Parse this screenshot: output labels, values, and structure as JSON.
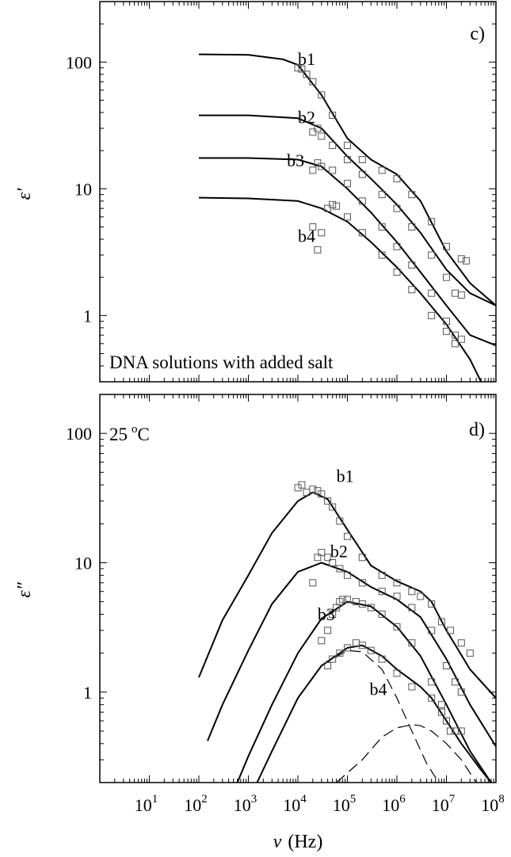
{
  "chart_data": [
    {
      "panel": "c)",
      "type": "scatter",
      "ylabel": "ε′",
      "xlim": [
        1,
        100000000
      ],
      "ylim": [
        0.3,
        300
      ],
      "x_scale": "log",
      "y_scale": "log",
      "y_ticks": [
        1,
        10,
        100
      ],
      "y_tick_labels": [
        "1",
        "10",
        "100"
      ],
      "annotation": "DNA solutions with added salt",
      "fit_style": "solid",
      "series": [
        {
          "name": "b1",
          "data": [
            [
              10000,
              90
            ],
            [
              12000,
              88
            ],
            [
              15000,
              80
            ],
            [
              20000,
              70
            ],
            [
              30000,
              55
            ],
            [
              50000,
              38
            ],
            [
              100000,
              22
            ],
            [
              200000,
              17
            ],
            [
              500000,
              14
            ],
            [
              1000000,
              12
            ],
            [
              2000000,
              9
            ],
            [
              5000000,
              5.5
            ],
            [
              10000000,
              3.5
            ],
            [
              20000000,
              2.8
            ],
            [
              25000000,
              2.7
            ]
          ],
          "fit": [
            [
              100,
              115
            ],
            [
              1000,
              114
            ],
            [
              5000,
              105
            ],
            [
              10000,
              95
            ],
            [
              30000,
              55
            ],
            [
              100000,
              25
            ],
            [
              300000,
              17
            ],
            [
              1000000,
              13
            ],
            [
              3000000,
              8
            ],
            [
              10000000,
              3.2
            ],
            [
              30000000,
              1.8
            ],
            [
              100000000,
              1.2
            ]
          ]
        },
        {
          "name": "b2",
          "data": [
            [
              20000,
              28
            ],
            [
              25000,
              30
            ],
            [
              30000,
              26
            ],
            [
              50000,
              22
            ],
            [
              100000,
              17
            ],
            [
              200000,
              13
            ],
            [
              500000,
              9
            ],
            [
              1000000,
              7
            ],
            [
              2000000,
              5
            ],
            [
              5000000,
              3
            ],
            [
              10000000,
              2
            ],
            [
              15000000,
              1.5
            ],
            [
              20000000,
              1.45
            ]
          ],
          "fit": [
            [
              100,
              38
            ],
            [
              1000,
              38
            ],
            [
              10000,
              36
            ],
            [
              30000,
              30
            ],
            [
              100000,
              18
            ],
            [
              300000,
              12
            ],
            [
              1000000,
              7.5
            ],
            [
              3000000,
              4.5
            ],
            [
              10000000,
              2.3
            ],
            [
              30000000,
              1.5
            ],
            [
              100000000,
              1.2
            ]
          ]
        },
        {
          "name": "b3",
          "data": [
            [
              20000,
              14
            ],
            [
              25000,
              16
            ],
            [
              30000,
              15
            ],
            [
              50000,
              14
            ],
            [
              100000,
              11
            ],
            [
              200000,
              8
            ],
            [
              500000,
              5
            ],
            [
              1000000,
              3.5
            ],
            [
              2000000,
              2.5
            ],
            [
              5000000,
              1.5
            ],
            [
              10000000,
              0.9
            ],
            [
              15000000,
              0.7
            ],
            [
              20000000,
              0.65
            ]
          ],
          "fit": [
            [
              100,
              17.5
            ],
            [
              1000,
              17.5
            ],
            [
              10000,
              17
            ],
            [
              30000,
              15
            ],
            [
              100000,
              10
            ],
            [
              300000,
              6.5
            ],
            [
              1000000,
              3.8
            ],
            [
              3000000,
              2.2
            ],
            [
              10000000,
              1.2
            ],
            [
              30000000,
              0.7
            ],
            [
              100000000,
              0.58
            ]
          ]
        },
        {
          "name": "b4",
          "data": [
            [
              20000,
              5
            ],
            [
              25000,
              3.3
            ],
            [
              30000,
              4.5
            ],
            [
              40000,
              7
            ],
            [
              50000,
              7.5
            ],
            [
              60000,
              7.3
            ],
            [
              100000,
              6
            ],
            [
              200000,
              4.5
            ],
            [
              500000,
              3
            ],
            [
              1000000,
              2.2
            ],
            [
              2000000,
              1.6
            ],
            [
              5000000,
              1
            ],
            [
              10000000,
              0.75
            ],
            [
              15000000,
              0.6
            ]
          ],
          "fit": [
            [
              100,
              8.5
            ],
            [
              1000,
              8.4
            ],
            [
              10000,
              8
            ],
            [
              30000,
              7
            ],
            [
              100000,
              5.5
            ],
            [
              300000,
              3.8
            ],
            [
              1000000,
              2.4
            ],
            [
              3000000,
              1.5
            ],
            [
              10000000,
              0.85
            ],
            [
              30000000,
              0.45
            ],
            [
              50000000,
              0.3
            ]
          ]
        }
      ]
    },
    {
      "panel": "d)",
      "type": "scatter",
      "ylabel": "ε″",
      "xlabel_symbol": "ν",
      "xlabel_unit": "(Hz)",
      "xlim": [
        1,
        100000000
      ],
      "ylim": [
        0.2,
        200
      ],
      "x_scale": "log",
      "y_scale": "log",
      "x_ticks": [
        10,
        100,
        1000,
        10000,
        100000,
        1000000,
        10000000,
        100000000
      ],
      "x_tick_bases": [
        "10",
        "10",
        "10",
        "10",
        "10",
        "10",
        "10",
        "10"
      ],
      "x_tick_exponents": [
        "1",
        "2",
        "3",
        "4",
        "5",
        "6",
        "7",
        "8"
      ],
      "y_ticks": [
        1,
        10,
        100
      ],
      "y_tick_labels": [
        "1",
        "10",
        "100"
      ],
      "temperature_value": "25",
      "temperature_unit_sup": "o",
      "temperature_unit": "C",
      "fit_style": "solid",
      "component_style": "dashed",
      "series": [
        {
          "name": "b1",
          "data": [
            [
              10000,
              38
            ],
            [
              12000,
              40
            ],
            [
              15000,
              35
            ],
            [
              20000,
              37
            ],
            [
              25000,
              36
            ],
            [
              30000,
              34
            ],
            [
              40000,
              30
            ],
            [
              50000,
              27
            ],
            [
              70000,
              21
            ],
            [
              100000,
              16
            ],
            [
              200000,
              11
            ],
            [
              500000,
              8
            ],
            [
              1000000,
              7
            ],
            [
              2000000,
              6
            ],
            [
              3000000,
              5.5
            ],
            [
              5000000,
              4.8
            ],
            [
              8000000,
              3.5
            ],
            [
              12000000,
              3
            ],
            [
              20000000,
              2.4
            ],
            [
              30000000,
              2
            ]
          ],
          "fit": [
            [
              100,
              1.3
            ],
            [
              300,
              3.6
            ],
            [
              1000,
              8
            ],
            [
              3000,
              17
            ],
            [
              10000,
              30
            ],
            [
              20000,
              35
            ],
            [
              40000,
              31
            ],
            [
              100000,
              18
            ],
            [
              300000,
              9.5
            ],
            [
              1000000,
              7.2
            ],
            [
              3000000,
              6
            ],
            [
              5000000,
              5
            ],
            [
              10000000,
              3
            ],
            [
              30000000,
              1.5
            ],
            [
              100000000,
              0.9
            ]
          ]
        },
        {
          "name": "b2",
          "data": [
            [
              20000,
              7
            ],
            [
              25000,
              11
            ],
            [
              30000,
              12
            ],
            [
              40000,
              11
            ],
            [
              50000,
              10
            ],
            [
              70000,
              9
            ],
            [
              100000,
              8
            ],
            [
              200000,
              7
            ],
            [
              500000,
              6
            ],
            [
              1000000,
              5.5
            ],
            [
              2000000,
              4.5
            ],
            [
              5000000,
              3
            ],
            [
              10000000,
              1.6
            ],
            [
              15000000,
              1.2
            ],
            [
              20000000,
              1
            ]
          ],
          "fit": [
            [
              150,
              0.42
            ],
            [
              300,
              0.8
            ],
            [
              1000,
              2.1
            ],
            [
              3000,
              4.8
            ],
            [
              10000,
              8.5
            ],
            [
              30000,
              10
            ],
            [
              100000,
              8.5
            ],
            [
              300000,
              6.5
            ],
            [
              1000000,
              5.2
            ],
            [
              3000000,
              3.8
            ],
            [
              10000000,
              1.8
            ],
            [
              30000000,
              0.8
            ],
            [
              100000000,
              0.38
            ]
          ]
        },
        {
          "name": "b3",
          "data": [
            [
              30000,
              2.5
            ],
            [
              40000,
              3
            ],
            [
              50000,
              4
            ],
            [
              60000,
              4.5
            ],
            [
              70000,
              5
            ],
            [
              80000,
              5.2
            ],
            [
              100000,
              5.2
            ],
            [
              150000,
              5
            ],
            [
              200000,
              4.8
            ],
            [
              300000,
              4.5
            ],
            [
              500000,
              4
            ],
            [
              1000000,
              3.2
            ],
            [
              2000000,
              2.4
            ],
            [
              5000000,
              1.2
            ],
            [
              8000000,
              0.8
            ],
            [
              10000000,
              0.6
            ],
            [
              12000000,
              0.5
            ]
          ],
          "fit": [
            [
              600,
              0.2
            ],
            [
              1000,
              0.32
            ],
            [
              3000,
              0.8
            ],
            [
              10000,
              2
            ],
            [
              30000,
              3.7
            ],
            [
              100000,
              5
            ],
            [
              300000,
              4.6
            ],
            [
              1000000,
              3.2
            ],
            [
              3000000,
              1.9
            ],
            [
              10000000,
              0.8
            ],
            [
              30000000,
              0.35
            ],
            [
              80000000,
              0.2
            ]
          ]
        },
        {
          "name": "b4",
          "data": [
            [
              40000,
              1.6
            ],
            [
              50000,
              1.8
            ],
            [
              70000,
              2
            ],
            [
              100000,
              2.2
            ],
            [
              150000,
              2.4
            ],
            [
              200000,
              2.3
            ],
            [
              300000,
              2.1
            ],
            [
              500000,
              1.8
            ],
            [
              1000000,
              1.4
            ],
            [
              2000000,
              1.1
            ],
            [
              5000000,
              0.9
            ],
            [
              8000000,
              0.7
            ],
            [
              10000000,
              0.6
            ],
            [
              15000000,
              0.5
            ],
            [
              20000000,
              0.5
            ]
          ],
          "fit": [
            [
              1500,
              0.2
            ],
            [
              3000,
              0.35
            ],
            [
              10000,
              0.9
            ],
            [
              30000,
              1.6
            ],
            [
              100000,
              2.2
            ],
            [
              200000,
              2.3
            ],
            [
              500000,
              1.9
            ],
            [
              1000000,
              1.5
            ],
            [
              3000000,
              1.1
            ],
            [
              5000000,
              0.9
            ],
            [
              10000000,
              0.6
            ],
            [
              20000000,
              0.4
            ],
            [
              50000000,
              0.25
            ],
            [
              80000000,
              0.2
            ]
          ]
        }
      ],
      "components": [
        {
          "of": "b4",
          "fit": [
            [
              1500,
              0.2
            ],
            [
              3000,
              0.35
            ],
            [
              10000,
              0.9
            ],
            [
              30000,
              1.6
            ],
            [
              100000,
              2.1
            ],
            [
              200000,
              2.05
            ],
            [
              500000,
              1.5
            ],
            [
              1000000,
              0.9
            ],
            [
              2000000,
              0.5
            ],
            [
              4000000,
              0.28
            ],
            [
              7000000,
              0.2
            ]
          ]
        },
        {
          "of": "b4",
          "fit": [
            [
              60000,
              0.2
            ],
            [
              200000,
              0.3
            ],
            [
              500000,
              0.45
            ],
            [
              1000000,
              0.53
            ],
            [
              2000000,
              0.56
            ],
            [
              3000000,
              0.55
            ],
            [
              5000000,
              0.5
            ],
            [
              10000000,
              0.4
            ],
            [
              20000000,
              0.3
            ],
            [
              40000000,
              0.2
            ]
          ]
        }
      ]
    }
  ]
}
